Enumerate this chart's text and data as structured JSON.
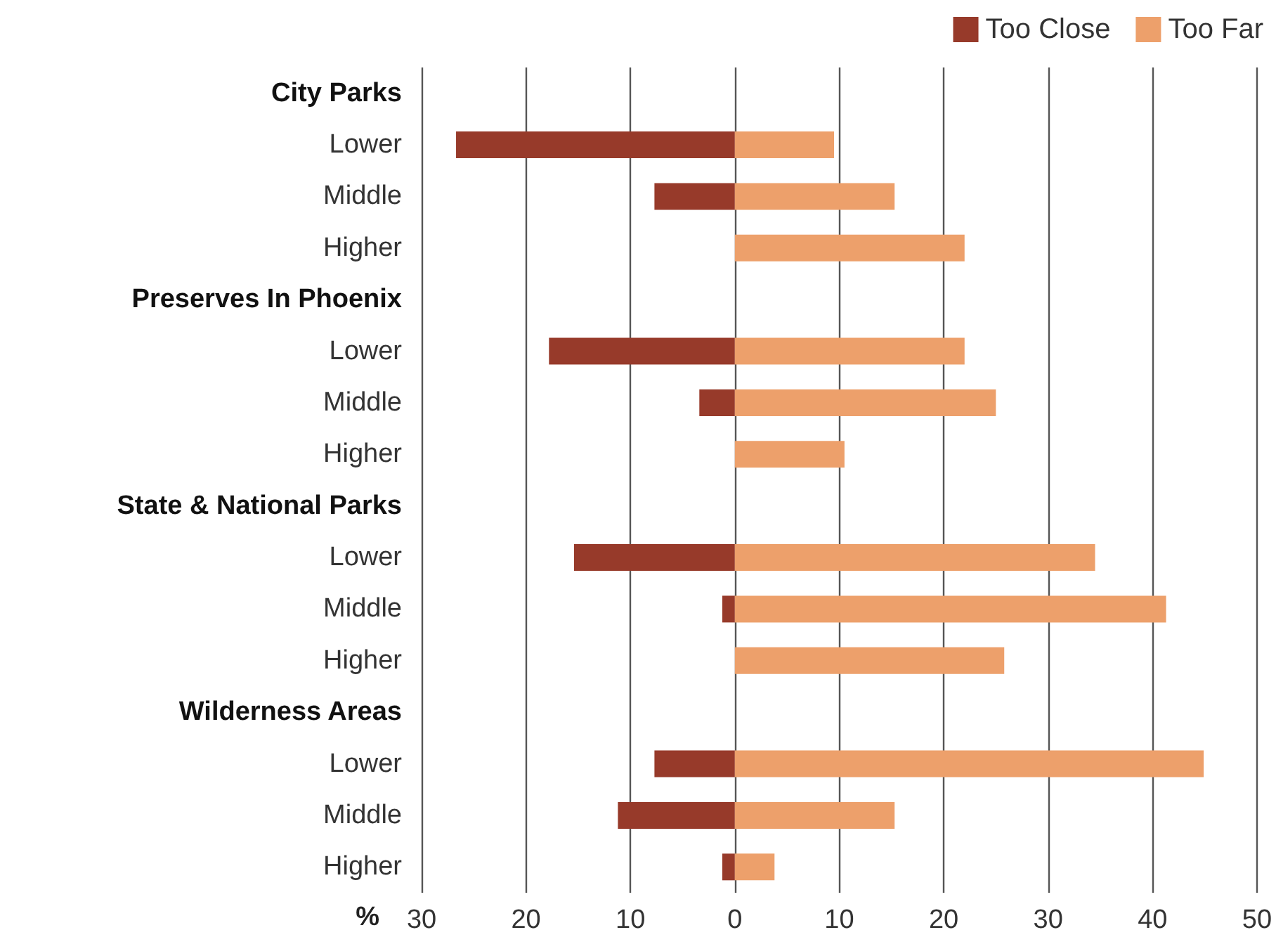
{
  "chart_data": {
    "type": "bar",
    "orientation": "horizontal",
    "xlabel": "%",
    "categories": [
      "City Parks",
      "Lower",
      "Middle",
      "Higher",
      "Preserves In Phoenix",
      "Lower",
      "Middle",
      "Higher",
      "State & National Parks",
      "Lower",
      "Middle",
      "Higher",
      "Wilderness Areas",
      "Lower",
      "Middle",
      "Higher"
    ],
    "series": [
      {
        "name": "Too Close",
        "color": "#973a2a",
        "values": [
          null,
          -26.7,
          -7.7,
          null,
          null,
          -17.8,
          -3.4,
          null,
          null,
          -15.4,
          -1.2,
          null,
          null,
          -7.7,
          -11.2,
          -1.2
        ]
      },
      {
        "name": "Too Far",
        "color": "#eda06b",
        "values": [
          null,
          9.5,
          15.3,
          22,
          null,
          22,
          25,
          10.5,
          null,
          34.5,
          41.3,
          25.8,
          null,
          44.9,
          15.3,
          3.8
        ]
      }
    ],
    "xlim": [
      -30,
      50
    ],
    "xticks": [
      {
        "value": -30,
        "label": "30"
      },
      {
        "value": -20,
        "label": "20"
      },
      {
        "value": -10,
        "label": "10"
      },
      0,
      10,
      20,
      30,
      40,
      50
    ],
    "grid": "x",
    "legend": "top right",
    "stacked": true
  }
}
